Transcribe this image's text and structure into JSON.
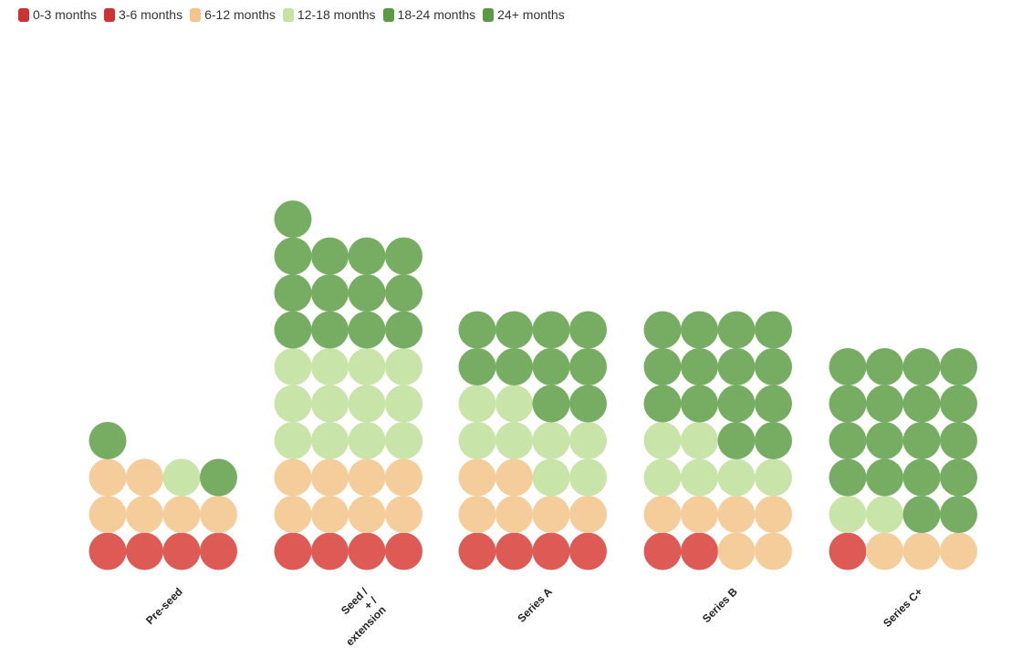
{
  "legend": [
    {
      "label": "0-3 months",
      "color": "#cc3333"
    },
    {
      "label": "3-6 months",
      "color": "#cc3333"
    },
    {
      "label": "6-12 months",
      "color": "#f5c48a"
    },
    {
      "label": "12-18 months",
      "color": "#c6e2a1"
    },
    {
      "label": "18-24 months",
      "color": "#5a9a47"
    },
    {
      "label": "24+ months",
      "color": "#5a9a47"
    }
  ],
  "chart_data": {
    "type": "waffle",
    "units_per_row": 4,
    "categories": [
      "Pre-seed",
      "Seed /\n+ /\nextension",
      "Series A",
      "Series B",
      "Series C+"
    ],
    "series": [
      {
        "name": "0-3 months",
        "color": "#dd5a55",
        "values": [
          4,
          4,
          4,
          2,
          1
        ]
      },
      {
        "name": "3-6 months",
        "color": "#dd5a55",
        "values": [
          0,
          0,
          0,
          0,
          0
        ]
      },
      {
        "name": "6-12 months",
        "color": "#f5cd9a",
        "values": [
          6,
          8,
          6,
          6,
          3
        ]
      },
      {
        "name": "12-18 months",
        "color": "#c8e4a8",
        "values": [
          1,
          12,
          8,
          6,
          2
        ]
      },
      {
        "name": "18-24 months",
        "color": "#77ad62",
        "values": [
          2,
          13,
          10,
          14,
          18
        ]
      },
      {
        "name": "24+ months",
        "color": "#77ad62",
        "values": [
          0,
          0,
          0,
          0,
          0
        ]
      }
    ]
  }
}
